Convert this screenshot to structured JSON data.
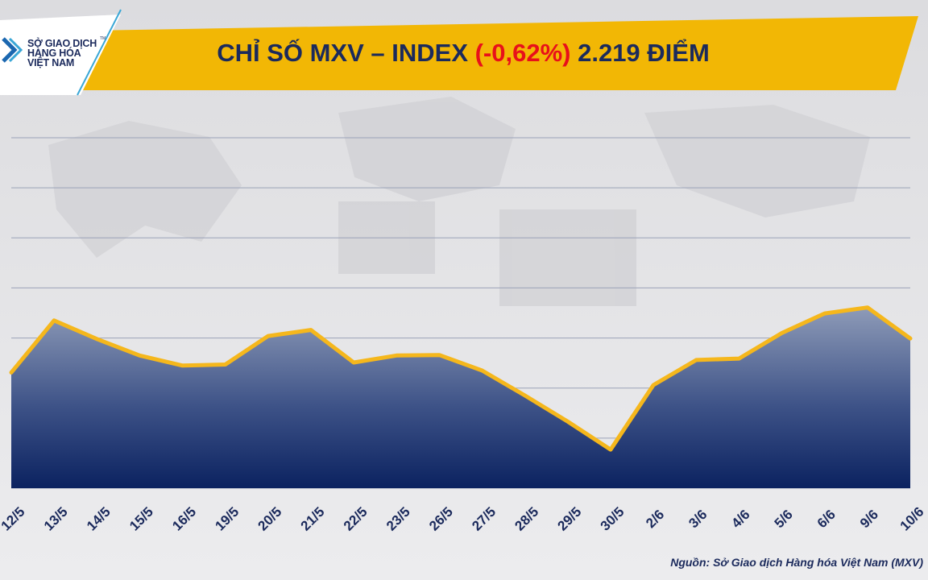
{
  "header": {
    "logo": {
      "icon": "chevron-logo-icon",
      "trademark": "TM",
      "lines": [
        "SỞ GIAO DỊCH",
        "HÀNG HÓA",
        "VIỆT NAM"
      ]
    },
    "title_prefix": "CHỈ SỐ MXV – INDEX ",
    "title_change": "(-0,62%)",
    "title_suffix": " 2.219 ĐIỂM"
  },
  "colors": {
    "banner": "#f2b705",
    "title": "#1b2a5c",
    "negative": "#e8101a",
    "line": "#f5b71c",
    "area_top": "#8e9bb8",
    "area_bottom": "#0b2260",
    "grid": "#9aa2b8"
  },
  "chart_data": {
    "type": "area",
    "categories": [
      "12/5",
      "13/5",
      "14/5",
      "15/5",
      "16/5",
      "19/5",
      "20/5",
      "21/5",
      "22/5",
      "23/5",
      "26/5",
      "27/5",
      "28/5",
      "29/5",
      "30/5",
      "2/6",
      "3/6",
      "4/6",
      "5/6",
      "6/6",
      "9/6",
      "10/6"
    ],
    "series": [
      {
        "values": [
          2.31,
          3.35,
          2.98,
          2.65,
          2.45,
          2.47,
          3.04,
          3.16,
          2.51,
          2.65,
          2.66,
          2.35,
          1.85,
          1.33,
          0.77,
          2.06,
          2.56,
          2.59,
          3.1,
          3.49,
          3.61,
          2.99
        ]
      }
    ],
    "grid_lines": 7,
    "grid": true,
    "legend": "none",
    "source": "Nguồn: Sở Giao dịch Hàng hóa Việt Nam (MXV)"
  }
}
